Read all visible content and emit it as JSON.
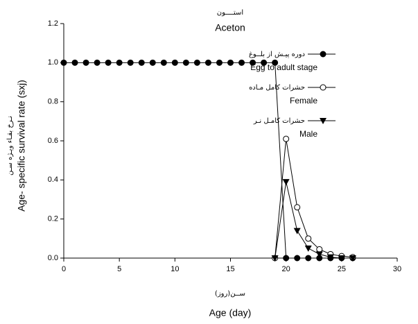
{
  "chart_data": {
    "type": "line",
    "title_fa": "استــــون",
    "title": "Aceton",
    "xlabel_fa": "ســن(روز)",
    "xlabel": "Age (day)",
    "ylabel_fa": "نـرخ بقـاء ویـژه سـن",
    "ylabel": "Age- specific survival rate (sxj)",
    "x": [
      0,
      1,
      2,
      3,
      4,
      5,
      6,
      7,
      8,
      9,
      10,
      11,
      12,
      13,
      14,
      15,
      16,
      17,
      18,
      19,
      20,
      21,
      22,
      23,
      24,
      25,
      26
    ],
    "series": [
      {
        "name": "Egg to adult stage",
        "name_fa": "دوره پیـش از بلــوغ",
        "marker": "filled-circle",
        "color": "#000000",
        "values": [
          1,
          1,
          1,
          1,
          1,
          1,
          1,
          1,
          1,
          1,
          1,
          1,
          1,
          1,
          1,
          1,
          1,
          1,
          1,
          1,
          0,
          0,
          0,
          0,
          0,
          0,
          0
        ]
      },
      {
        "name": "Female",
        "name_fa": "حشرات کامل مـاده",
        "marker": "open-circle",
        "color": "#000000",
        "values": [
          null,
          null,
          null,
          null,
          null,
          null,
          null,
          null,
          null,
          null,
          null,
          null,
          null,
          null,
          null,
          null,
          null,
          null,
          null,
          0,
          0.61,
          0.26,
          0.1,
          0.045,
          0.02,
          0.01,
          0.005
        ]
      },
      {
        "name": "Male",
        "name_fa": "حشرات کامـل نـر",
        "marker": "triangle-down",
        "color": "#000000",
        "values": [
          null,
          null,
          null,
          null,
          null,
          null,
          null,
          null,
          null,
          null,
          null,
          null,
          null,
          null,
          null,
          null,
          null,
          null,
          null,
          0,
          0.39,
          0.14,
          0.05,
          0.02,
          0.005,
          0,
          0
        ]
      }
    ],
    "xlim": [
      0,
      30
    ],
    "xticks": [
      0,
      5,
      10,
      15,
      20,
      25,
      30
    ],
    "ylim": [
      0,
      1.2
    ],
    "yticks": [
      {
        "value": 0,
        "label": "0.0"
      },
      {
        "value": 0.2,
        "label": "0.2"
      },
      {
        "value": 0.4,
        "label": "0.4"
      },
      {
        "value": 0.6,
        "label": "0.6"
      },
      {
        "value": 0.8,
        "label": "0.8"
      },
      {
        "value": 1,
        "label": "1.0"
      },
      {
        "value": 1.2,
        "label": "1.2"
      }
    ],
    "grid": false
  }
}
